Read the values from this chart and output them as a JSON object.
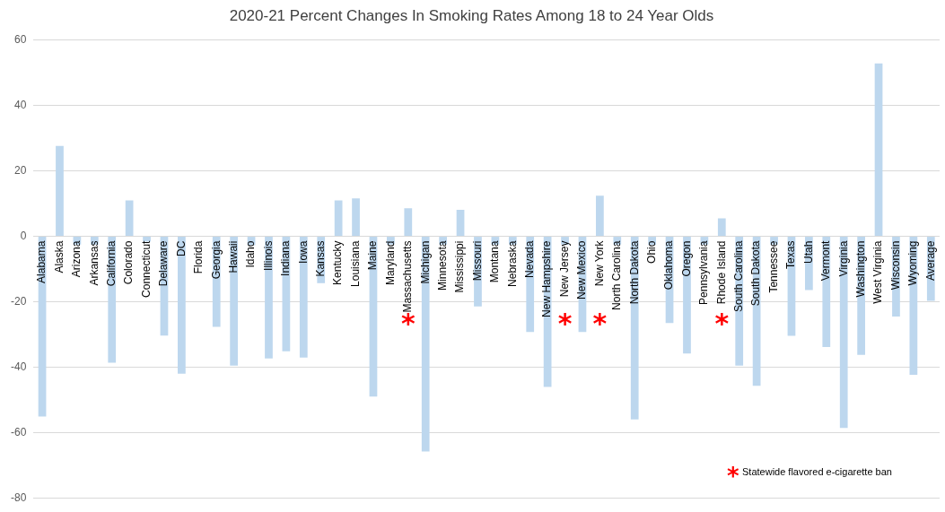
{
  "chart_data": {
    "type": "bar",
    "title": "2020-21 Percent Changes In Smoking Rates Among 18 to 24 Year Olds",
    "categories": [
      "Alabama",
      "Alaska",
      "Arizona",
      "Arkansas",
      "California",
      "Colorado",
      "Connecticut",
      "Delaware",
      "DC",
      "Florida",
      "Georgia",
      "Hawaii",
      "Idaho",
      "Illinois",
      "Indiana",
      "Iowa",
      "Kansas",
      "Kentucky",
      "Louisiana",
      "Maine",
      "Maryland",
      "Massachusetts",
      "Michigan",
      "Minnesota",
      "Mississippi",
      "Missouri",
      "Montana",
      "Nebraska",
      "Nevada",
      "New Hampshire",
      "New Jersey",
      "New Mexico",
      "New York",
      "North Carolina",
      "North Dakota",
      "Ohio",
      "Oklahoma",
      "Oregon",
      "Pennsylvania",
      "Rhode Island",
      "South Carolina",
      "South Dakota",
      "Tennessee",
      "Texas",
      "Utah",
      "Vermont",
      "Virginia",
      "Washington",
      "West Virginia",
      "Wisconsin",
      "Wyoming",
      "Average"
    ],
    "values": [
      -55,
      27.6,
      -2.5,
      -2.5,
      -38.6,
      11,
      -1.6,
      -30.3,
      -41.9,
      0,
      -27.6,
      -39.5,
      -2.7,
      -37.3,
      -35.1,
      -37,
      -14.3,
      11,
      11.6,
      -48.9,
      -2.5,
      8.6,
      -65.7,
      -2.5,
      8.1,
      -21.4,
      -2.5,
      -2.5,
      -29.2,
      -46,
      -2.5,
      -29.2,
      12.4,
      -2.5,
      -55.9,
      -2.6,
      -26.5,
      -35.8,
      -2.5,
      5.5,
      -39.5,
      -45.6,
      -2.5,
      -30.4,
      -16.4,
      -33.8,
      -58.5,
      -36.2,
      52.8,
      -24.5,
      -42.3,
      -19.7
    ],
    "color": "#bdd7ee",
    "ylim": [
      -80,
      60
    ],
    "yticks": [
      -80,
      -60,
      -40,
      -20,
      0,
      20,
      40,
      60
    ],
    "grid": "y",
    "legend": false,
    "value_labels": [
      null,
      null,
      null,
      null,
      null,
      null,
      null,
      null,
      null,
      null,
      null,
      null,
      null,
      null,
      null,
      null,
      null,
      null,
      null,
      null,
      null,
      "*",
      null,
      null,
      null,
      null,
      null,
      null,
      null,
      null,
      "*",
      null,
      "*",
      null,
      null,
      null,
      null,
      null,
      null,
      "*",
      null,
      null,
      null,
      null,
      null,
      null,
      null,
      null,
      null,
      null,
      null,
      null
    ],
    "annotations": [
      "Statewide flavored e-cigarette ban"
    ]
  }
}
